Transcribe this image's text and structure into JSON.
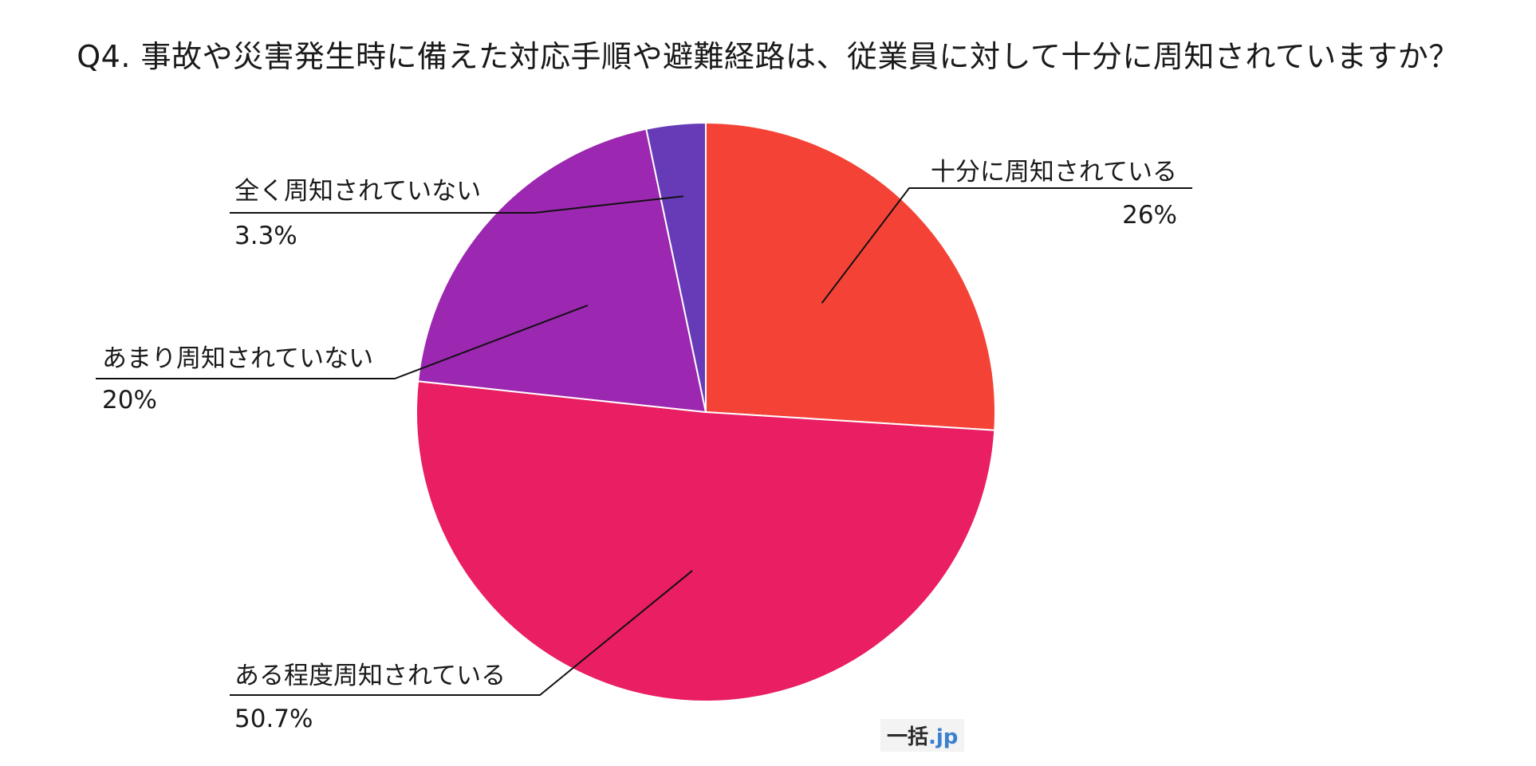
{
  "watermark": {
    "main": "一括",
    "accent": ".jp"
  },
  "chart_data": {
    "type": "pie",
    "title": "Q4. 事故や災害発生時に備えた対応手順や避難経路は、従業員に対して十分に周知されていますか？",
    "start_angle_deg": 0,
    "direction": "clockwise",
    "slices": [
      {
        "label": "十分に周知されている",
        "value": 26,
        "value_label": "26%",
        "color": "#f44336"
      },
      {
        "label": "ある程度周知されている",
        "value": 50.7,
        "value_label": "50.7%",
        "color": "#e91e63"
      },
      {
        "label": "あまり周知されていない",
        "value": 20,
        "value_label": "20%",
        "color": "#9c27b0"
      },
      {
        "label": "全く周知されていない",
        "value": 3.3,
        "value_label": "3.3%",
        "color": "#673ab7"
      }
    ]
  }
}
